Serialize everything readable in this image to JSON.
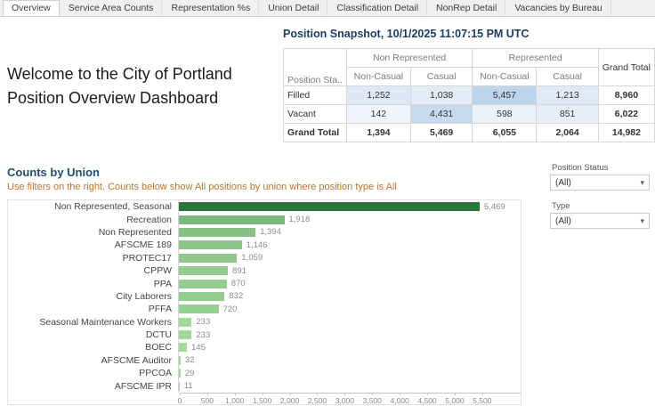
{
  "tabs": [
    {
      "label": "Overview",
      "active": true
    },
    {
      "label": "Service Area Counts",
      "active": false
    },
    {
      "label": "Representation %s",
      "active": false
    },
    {
      "label": "Union Detail",
      "active": false
    },
    {
      "label": "Classification Detail",
      "active": false
    },
    {
      "label": "NonRep Detail",
      "active": false
    },
    {
      "label": "Vacancies by Bureau",
      "active": false
    }
  ],
  "welcome": {
    "line1": "Welcome to the City of Portland",
    "line2": "Position Overview Dashboard"
  },
  "snapshot": {
    "title": "Position Snapshot, 10/1/2025 11:07:15 PM UTC",
    "row_dim_label": "Position Sta..",
    "col_groups": [
      "Non Represented",
      "Represented"
    ],
    "sub_columns": [
      "Non-Casual",
      "Casual",
      "Non-Casual",
      "Casual"
    ],
    "grand_total_label": "Grand Total",
    "rows": [
      {
        "label": "Filled",
        "is_total": false,
        "total": "8,960",
        "cells": [
          {
            "value": "1,252",
            "bg": "#dfe9f5"
          },
          {
            "value": "1,038",
            "bg": "#e4ecf7"
          },
          {
            "value": "5,457",
            "bg": "#bdd4ed"
          },
          {
            "value": "1,213",
            "bg": "#e0eaf6"
          }
        ]
      },
      {
        "label": "Vacant",
        "is_total": false,
        "total": "6,022",
        "cells": [
          {
            "value": "142",
            "bg": "#f1f5fb"
          },
          {
            "value": "4,431",
            "bg": "#c6daf0"
          },
          {
            "value": "598",
            "bg": "#ebf1f9"
          },
          {
            "value": "851",
            "bg": "#e7eef8"
          }
        ]
      },
      {
        "label": "Grand Total",
        "is_total": true,
        "total": "14,982",
        "cells": [
          {
            "value": "1,394",
            "bg": "#ffffff"
          },
          {
            "value": "5,469",
            "bg": "#ffffff"
          },
          {
            "value": "6,055",
            "bg": "#ffffff"
          },
          {
            "value": "2,064",
            "bg": "#ffffff"
          }
        ]
      }
    ]
  },
  "union_section": {
    "title": "Counts by Union",
    "subtitle": "Use filters on the right. Counts below show All positions by union where position type is All",
    "title_color": "#1f4e79",
    "subtitle_color": "#bd752c"
  },
  "chart_data": {
    "type": "bar",
    "orientation": "horizontal",
    "title": "Counts by Union",
    "categories": [
      "Non Represented, Seasonal",
      "Recreation",
      "Non Represented",
      "AFSCME 189",
      "PROTEC17",
      "CPPW",
      "PPA",
      "City Laborers",
      "PFFA",
      "Seasonal Maintenance Workers",
      "DCTU",
      "BOEC",
      "AFSCME Auditor",
      "PPCOA",
      "AFSCME IPR"
    ],
    "values": [
      5469,
      1918,
      1394,
      1146,
      1059,
      891,
      870,
      832,
      720,
      233,
      233,
      145,
      32,
      29,
      11
    ],
    "value_labels": [
      "5,469",
      "1,918",
      "1,394",
      "1,146",
      "1,059",
      "891",
      "870",
      "832",
      "720",
      "233",
      "233",
      "145",
      "32",
      "29",
      "11"
    ],
    "axis_ticks": [
      0,
      500,
      1000,
      1500,
      2000,
      2500,
      3000,
      3500,
      4000,
      4500,
      5000,
      5500
    ],
    "xlim": [
      0,
      5600
    ],
    "grid": false,
    "legend": false,
    "color_scale": {
      "min": "#a8dba0",
      "max": "#27763a"
    }
  },
  "filters": [
    {
      "label": "Position Status",
      "value": "(All)"
    },
    {
      "label": "Type",
      "value": "(All)"
    }
  ]
}
